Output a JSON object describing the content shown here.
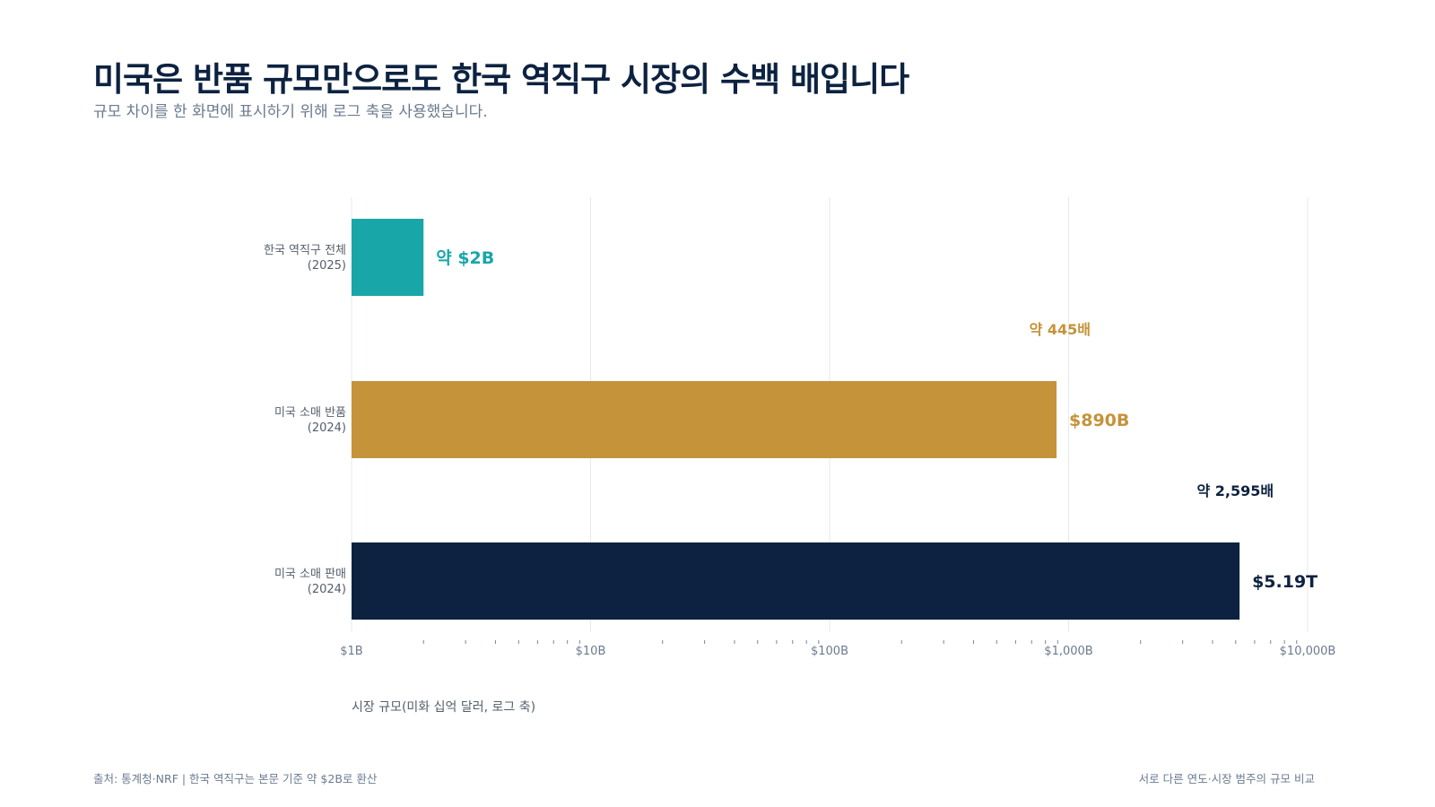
{
  "header": {
    "title": "미국은 반품 규모만으로도 한국 역직구 시장의 수백 배입니다",
    "subtitle": "규모 차이를 한 화면에 표시하기 위해 로그 축을 사용했습니다."
  },
  "footer": {
    "source": "출처: 통계청·NRF | 한국 역직구는 본문 기준 약 $2B로 환산",
    "note": "서로 다른 연도·시장 범주의 규모 비교"
  },
  "chart_data": {
    "type": "bar",
    "orientation": "horizontal",
    "x_scale": "log",
    "xlim": [
      1,
      10000
    ],
    "xlabel": "시장 규모(미화 십억 달러, 로그 축)",
    "x_ticks": [
      {
        "value": 1,
        "label": "$1B"
      },
      {
        "value": 10,
        "label": "$10B"
      },
      {
        "value": 100,
        "label": "$100B"
      },
      {
        "value": 1000,
        "label": "$1,000B"
      },
      {
        "value": 10000,
        "label": "$10,000B"
      }
    ],
    "grid": true,
    "categories": [
      {
        "line1": "한국 역직구 전체",
        "line2": "(2025)"
      },
      {
        "line1": "미국 소매 반품",
        "line2": "(2024)"
      },
      {
        "line1": "미국 소매 판매",
        "line2": "(2024)"
      }
    ],
    "values": [
      2,
      890,
      5190
    ],
    "value_labels": [
      "약 $2B",
      "$890B",
      "$5.19T"
    ],
    "colors": [
      "#19a6a8",
      "#c4933a",
      "#0d2240"
    ],
    "annotations": [
      {
        "bar_index": 1,
        "text": "약 445배",
        "color": "#c4933a"
      },
      {
        "bar_index": 2,
        "text": "약 2,595배",
        "color": "#0d2240"
      }
    ]
  }
}
